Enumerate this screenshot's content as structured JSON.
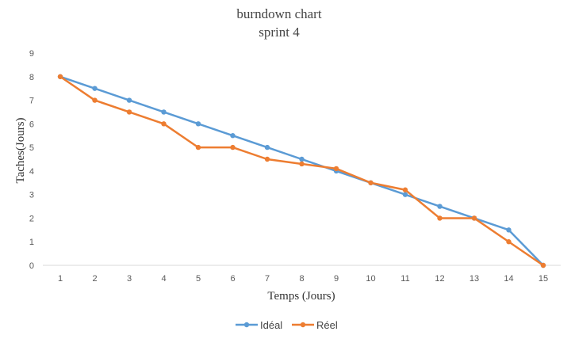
{
  "chart_data": {
    "type": "line",
    "title": "burndown chart",
    "subtitle": "sprint 4",
    "xlabel": "Temps (Jours)",
    "ylabel": "Taches(Jours)",
    "x": [
      1,
      2,
      3,
      4,
      5,
      6,
      7,
      8,
      9,
      10,
      11,
      12,
      13,
      14,
      15
    ],
    "xlim": [
      1,
      15
    ],
    "ylim": [
      0,
      9
    ],
    "yticks": [
      0,
      1,
      2,
      3,
      4,
      5,
      6,
      7,
      8,
      9
    ],
    "grid": false,
    "legend_position": "bottom",
    "series": [
      {
        "name": "Idéal",
        "color": "#5B9BD5",
        "values": [
          8,
          7.5,
          7,
          6.5,
          6,
          5.5,
          5,
          4.5,
          4,
          3.5,
          3,
          2.5,
          2,
          1.5,
          0
        ]
      },
      {
        "name": "Réel",
        "color": "#ED7D31",
        "values": [
          8,
          7,
          6.5,
          6,
          5,
          5,
          4.5,
          4.3,
          4.1,
          3.5,
          3.2,
          2,
          2,
          1,
          0
        ]
      }
    ]
  }
}
